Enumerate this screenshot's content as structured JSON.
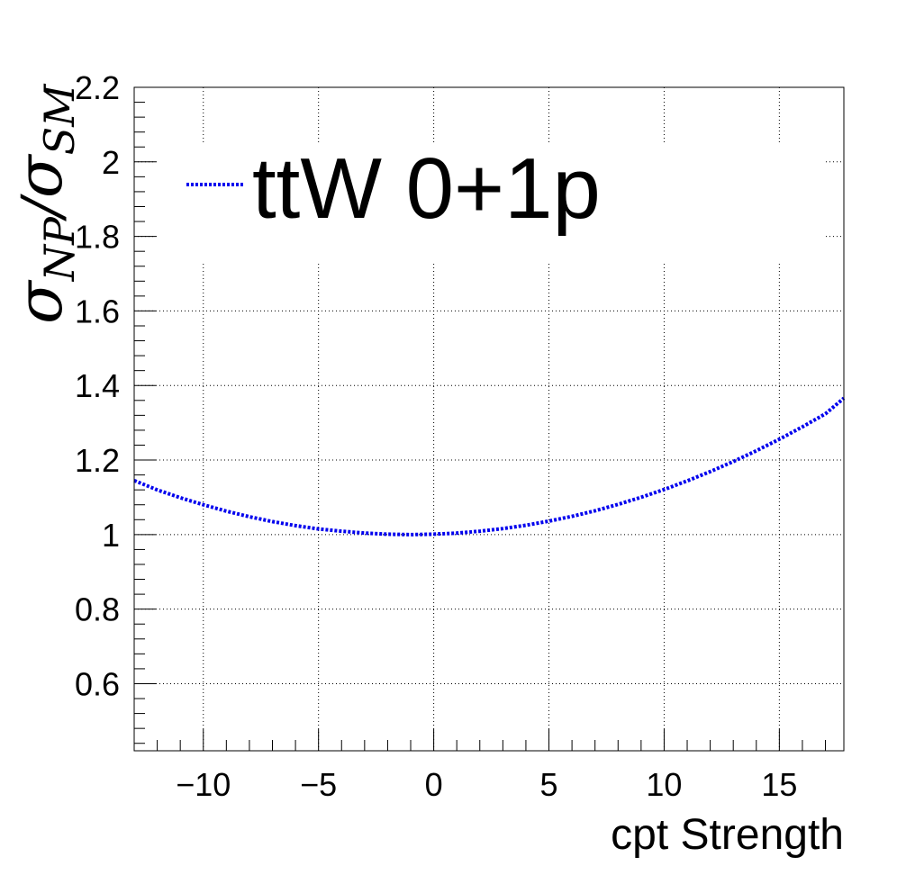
{
  "chart_data": {
    "type": "line",
    "xlabel": "cpt Strength",
    "ylabel": {
      "sym1": "σ",
      "sub1": "NP",
      "slash": "/",
      "sym2": "σ",
      "sub2": "SM"
    },
    "xlim": [
      -13,
      17.8
    ],
    "ylim": [
      0.42,
      2.2
    ],
    "xticks": [
      -10,
      -5,
      0,
      5,
      10,
      15
    ],
    "xtick_labels": [
      "−10",
      "−5",
      "0",
      "5",
      "10",
      "15"
    ],
    "yticks": [
      0.6,
      0.8,
      1,
      1.2,
      1.4,
      1.6,
      1.8,
      2,
      2.2
    ],
    "ytick_labels": [
      "0.6",
      "0.8",
      "1",
      "1.2",
      "1.4",
      "1.6",
      "1.8",
      "2",
      "2.2"
    ],
    "grid": true,
    "legend_position": "top-left",
    "series": [
      {
        "name": "ttW 0+1p",
        "color": "#0000ee",
        "style": "dotted",
        "x": [
          -13,
          -12,
          -11,
          -10,
          -9,
          -8,
          -7,
          -6,
          -5,
          -4,
          -3,
          -2,
          -1,
          0,
          1,
          2,
          3,
          4,
          5,
          6,
          7,
          8,
          9,
          10,
          11,
          12,
          13,
          14,
          15,
          16,
          17,
          17.8
        ],
        "y": [
          1.145,
          1.12,
          1.099,
          1.08,
          1.063,
          1.048,
          1.035,
          1.024,
          1.015,
          1.009,
          1.004,
          1.001,
          1.0,
          1.001,
          1.004,
          1.009,
          1.016,
          1.025,
          1.036,
          1.049,
          1.064,
          1.081,
          1.1,
          1.121,
          1.144,
          1.169,
          1.196,
          1.225,
          1.256,
          1.289,
          1.324,
          1.366
        ]
      }
    ]
  }
}
